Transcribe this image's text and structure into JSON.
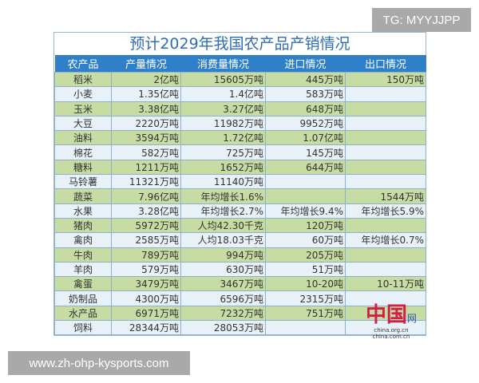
{
  "badge": "TG: MYYJJPP",
  "watermark": "www.zh-ohp-kysports.com",
  "table": {
    "title": "预计2029年我国农产品产销情况",
    "headers": [
      "农产品",
      "产量情况",
      "消费量情况",
      "进口情况",
      "出口情况"
    ],
    "rows": [
      [
        "稻米",
        "2亿吨",
        "15605万吨",
        "445万吨",
        "150万吨"
      ],
      [
        "小麦",
        "1.35亿吨",
        "1.4亿吨",
        "583万吨",
        ""
      ],
      [
        "玉米",
        "3.38亿吨",
        "3.27亿吨",
        "648万吨",
        ""
      ],
      [
        "大豆",
        "2220万吨",
        "11982万吨",
        "9952万吨",
        ""
      ],
      [
        "油料",
        "3594万吨",
        "1.72亿吨",
        "1.07亿吨",
        ""
      ],
      [
        "棉花",
        "582万吨",
        "725万吨",
        "145万吨",
        ""
      ],
      [
        "糖料",
        "1211万吨",
        "1652万吨",
        "644万吨",
        ""
      ],
      [
        "马铃薯",
        "11321万吨",
        "11140万吨",
        "",
        ""
      ],
      [
        "蔬菜",
        "7.96亿吨",
        "年均增长1.6%",
        "",
        "1544万吨"
      ],
      [
        "水果",
        "3.28亿吨",
        "年均增长2.7%",
        "年均增长9.4%",
        "年均增长5.9%"
      ],
      [
        "猪肉",
        "5972万吨",
        "人均42.30千克",
        "120万吨",
        ""
      ],
      [
        "禽肉",
        "2585万吨",
        "人均18.03千克",
        "60万吨",
        "年均增长0.7%"
      ],
      [
        "牛肉",
        "789万吨",
        "994万吨",
        "205万吨",
        ""
      ],
      [
        "羊肉",
        "579万吨",
        "630万吨",
        "51万吨",
        ""
      ],
      [
        "禽蛋",
        "3479万吨",
        "3467万吨",
        "10-20吨",
        "10-11万吨"
      ],
      [
        "奶制品",
        "4300万吨",
        "6596万吨",
        "2315万吨",
        ""
      ],
      [
        "水产品",
        "6971万吨",
        "7232万吨",
        "751万吨",
        ""
      ],
      [
        "饲料",
        "28344万吨",
        "28053万吨",
        "",
        ""
      ]
    ]
  },
  "logo": {
    "mark": "中国",
    "suffix": "网",
    "url1": "china.org.cn",
    "url2": "china.com.cn"
  },
  "colors": {
    "header": "#2f80c9",
    "row_green": "#c6dca3",
    "row_blue": "#e8f1f8",
    "title": "#2f6db5"
  }
}
